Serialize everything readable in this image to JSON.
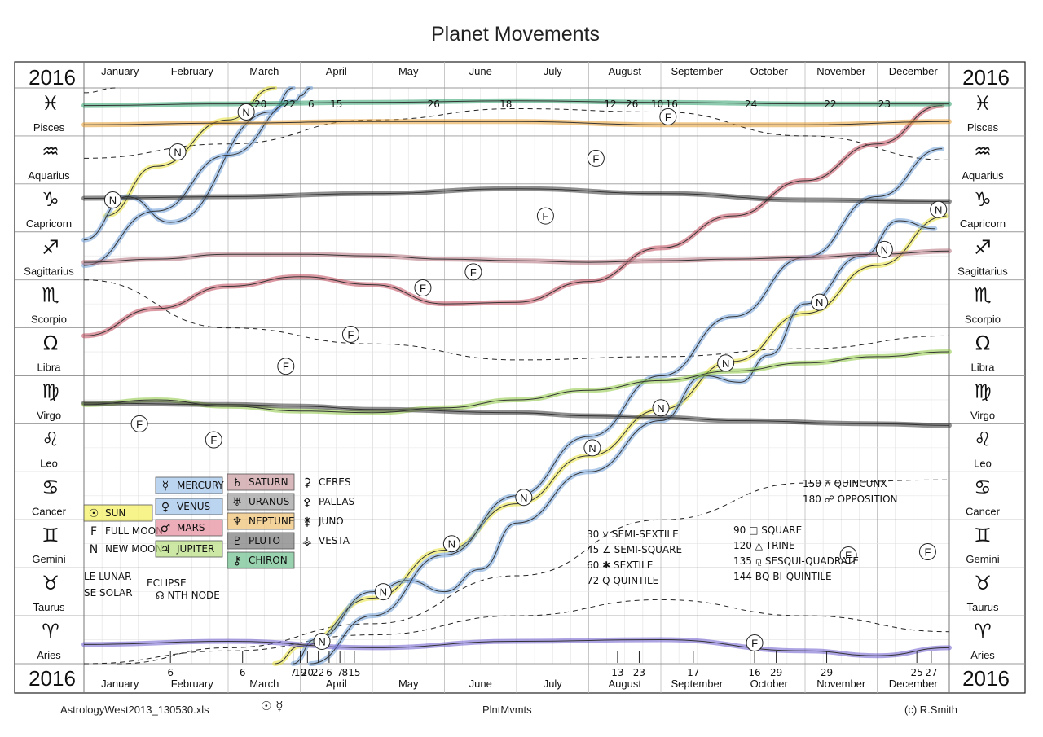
{
  "title": "Planet  Movements",
  "year": "2016",
  "footer": {
    "left": "AstrologyWest2013_130530.xls",
    "left_symbols": "☉ ☿",
    "center": "PlntMvmts",
    "right": "(c) R.Smith"
  },
  "chart_data": {
    "type": "line",
    "title": "Planet  Movements",
    "year": "2016",
    "months": [
      "January",
      "February",
      "March",
      "April",
      "May",
      "June",
      "July",
      "August",
      "September",
      "October",
      "November",
      "December"
    ],
    "signs": [
      {
        "name": "Pisces",
        "glyph": "♓"
      },
      {
        "name": "Aquarius",
        "glyph": "♒"
      },
      {
        "name": "Capricorn",
        "glyph": "♑"
      },
      {
        "name": "Sagittarius",
        "glyph": "♐"
      },
      {
        "name": "Scorpio",
        "glyph": "♏"
      },
      {
        "name": "Libra",
        "glyph": "Ω"
      },
      {
        "name": "Virgo",
        "glyph": "♍"
      },
      {
        "name": "Leo",
        "glyph": "♌"
      },
      {
        "name": "Cancer",
        "glyph": "♋"
      },
      {
        "name": "Gemini",
        "glyph": "♊"
      },
      {
        "name": "Taurus",
        "glyph": "♉"
      },
      {
        "name": "Aries",
        "glyph": "♈"
      }
    ],
    "xlim": [
      0,
      12
    ],
    "ylim": [
      0,
      360
    ],
    "series": [
      {
        "name": "Sun",
        "color": "#e8e23a",
        "points": [
          [
            0.3,
            280
          ],
          [
            1,
            311
          ],
          [
            2,
            340
          ],
          [
            3,
            11
          ],
          [
            4,
            41
          ],
          [
            5,
            71
          ],
          [
            6,
            100
          ],
          [
            7,
            130
          ],
          [
            8,
            159
          ],
          [
            9,
            189
          ],
          [
            10,
            219
          ],
          [
            11,
            249
          ],
          [
            11.96,
            280
          ]
        ]
      },
      {
        "name": "Mercury",
        "color": "#6f9fd8",
        "points": [
          [
            0,
            265
          ],
          [
            0.6,
            292
          ],
          [
            1.2,
            276
          ],
          [
            2.6,
            345
          ],
          [
            3.2,
            15
          ],
          [
            4,
            45
          ],
          [
            4.5,
            52
          ],
          [
            5,
            45
          ],
          [
            5.5,
            59
          ],
          [
            6,
            88
          ],
          [
            7,
            120
          ],
          [
            8,
            152
          ],
          [
            8.6,
            180
          ],
          [
            9.1,
            176
          ],
          [
            9.5,
            193
          ],
          [
            10,
            225
          ],
          [
            10.8,
            255
          ],
          [
            11.3,
            277
          ],
          [
            11.8,
            272
          ]
        ]
      },
      {
        "name": "Venus",
        "color": "#6f9fd8",
        "points": [
          [
            0,
            249
          ],
          [
            1,
            283
          ],
          [
            2,
            318
          ],
          [
            2.95,
            352
          ],
          [
            3,
            355
          ],
          [
            4,
            30
          ],
          [
            5,
            68
          ],
          [
            6,
            105
          ],
          [
            7,
            142
          ],
          [
            8,
            180
          ],
          [
            9,
            217
          ],
          [
            10,
            254
          ],
          [
            11,
            292
          ],
          [
            11.9,
            322
          ]
        ]
      },
      {
        "name": "Mars",
        "color": "#c0485a",
        "points": [
          [
            0,
            205
          ],
          [
            1,
            222
          ],
          [
            2,
            236
          ],
          [
            3,
            242
          ],
          [
            4,
            237
          ],
          [
            5,
            225
          ],
          [
            6,
            226
          ],
          [
            7,
            239
          ],
          [
            8,
            260
          ],
          [
            9,
            280
          ],
          [
            10,
            302
          ],
          [
            11,
            325
          ],
          [
            11.9,
            349
          ]
        ]
      },
      {
        "name": "Jupiter",
        "color": "#8cc63f",
        "points": [
          [
            0,
            162
          ],
          [
            1,
            165
          ],
          [
            2,
            161
          ],
          [
            3,
            158
          ],
          [
            4,
            157
          ],
          [
            5,
            160
          ],
          [
            6,
            165
          ],
          [
            7,
            171
          ],
          [
            8,
            177
          ],
          [
            9,
            183
          ],
          [
            10,
            188
          ],
          [
            11,
            192
          ],
          [
            12,
            195
          ]
        ]
      },
      {
        "name": "Saturn",
        "color": "#b0707a",
        "points": [
          [
            0,
            251
          ],
          [
            1,
            253
          ],
          [
            2,
            256
          ],
          [
            3,
            256
          ],
          [
            4,
            255
          ],
          [
            5,
            253
          ],
          [
            6,
            252
          ],
          [
            7,
            251
          ],
          [
            8,
            252
          ],
          [
            9,
            253
          ],
          [
            10,
            254
          ],
          [
            11,
            256
          ],
          [
            12,
            258
          ]
        ]
      },
      {
        "name": "Uranus",
        "color": "#333333",
        "points": [
          [
            0,
            291
          ],
          [
            2,
            292
          ],
          [
            4,
            294
          ],
          [
            6,
            297
          ],
          [
            8,
            294
          ],
          [
            10,
            290
          ],
          [
            12,
            289
          ]
        ]
      },
      {
        "name": "Neptune",
        "color": "#e39a2e",
        "points": [
          [
            0,
            337
          ],
          [
            2,
            338
          ],
          [
            4,
            339
          ],
          [
            6,
            339
          ],
          [
            8,
            337
          ],
          [
            10,
            337
          ],
          [
            12,
            339
          ]
        ]
      },
      {
        "name": "Pluto",
        "color": "#333333",
        "points": [
          [
            0,
            163
          ],
          [
            2,
            162
          ],
          [
            3,
            161
          ],
          [
            4,
            159
          ],
          [
            6,
            157
          ],
          [
            7,
            155
          ],
          [
            8,
            154
          ],
          [
            9,
            152
          ],
          [
            11,
            150
          ],
          [
            12,
            149
          ]
        ]
      },
      {
        "name": "Chiron",
        "color": "#2e9e6a",
        "points": [
          [
            0,
            349
          ],
          [
            2,
            350
          ],
          [
            4,
            351
          ],
          [
            6,
            352
          ],
          [
            8,
            351
          ],
          [
            10,
            350
          ],
          [
            12,
            350
          ]
        ]
      },
      {
        "name": "North Node",
        "color": "#6a5acd",
        "points": [
          [
            0,
            12
          ],
          [
            2,
            14
          ],
          [
            4,
            10
          ],
          [
            6,
            14
          ],
          [
            8,
            15
          ],
          [
            10,
            8
          ],
          [
            11,
            5
          ],
          [
            12,
            10
          ]
        ]
      }
    ],
    "dashed": [
      {
        "name": "Ceres",
        "color": "#222222",
        "points": [
          [
            0,
            0
          ],
          [
            2,
            8
          ],
          [
            4,
            18
          ],
          [
            6,
            30
          ],
          [
            8,
            40
          ],
          [
            10,
            30
          ],
          [
            12,
            20
          ]
        ]
      },
      {
        "name": "Pallas",
        "color": "#222222",
        "points": [
          [
            0,
            316
          ],
          [
            2,
            325
          ],
          [
            4,
            340
          ],
          [
            6,
            347
          ],
          [
            8,
            345
          ],
          [
            10,
            330
          ],
          [
            12,
            315
          ]
        ]
      },
      {
        "name": "Juno",
        "color": "#222222",
        "points": [
          [
            0,
            240
          ],
          [
            2,
            210
          ],
          [
            4,
            200
          ],
          [
            6,
            190
          ],
          [
            8,
            192
          ],
          [
            10,
            197
          ],
          [
            12,
            205
          ]
        ]
      },
      {
        "name": "Vesta",
        "color": "#222222",
        "points": [
          [
            0,
            357
          ],
          [
            2,
            10
          ],
          [
            4,
            25
          ],
          [
            6,
            55
          ],
          [
            8,
            90
          ],
          [
            10,
            113
          ],
          [
            12,
            115
          ]
        ]
      }
    ],
    "legend": [
      {
        "label": "SUN",
        "glyph": "☉",
        "color": "#f4ef5a"
      },
      {
        "label": "FULL MOON",
        "glyph": "F",
        "color": ""
      },
      {
        "label": "NEW MOON",
        "glyph": "N",
        "color": ""
      },
      {
        "label": "MERCURY",
        "glyph": "☿",
        "color": "#9ec2ea"
      },
      {
        "label": "VENUS",
        "glyph": "♀",
        "color": "#9ec2ea"
      },
      {
        "label": "MARS",
        "glyph": "♂",
        "color": "#e48a9a"
      },
      {
        "label": "JUPITER",
        "glyph": "♃",
        "color": "#b6de7e"
      },
      {
        "label": "SATURN",
        "glyph": "♄",
        "color": "#c99a9f"
      },
      {
        "label": "URANUS",
        "glyph": "♅",
        "color": "#9c9c9c"
      },
      {
        "label": "NEPTUNE",
        "glyph": "♆",
        "color": "#f0c070"
      },
      {
        "label": "PLUTO",
        "glyph": "♇",
        "color": "#777777"
      },
      {
        "label": "CHIRON",
        "glyph": "⚷",
        "color": "#6cbf8d"
      },
      {
        "label": "CERES",
        "glyph": "⚳",
        "color": ""
      },
      {
        "label": "PALLAS",
        "glyph": "⚴",
        "color": ""
      },
      {
        "label": "JUNO",
        "glyph": "⚵",
        "color": ""
      },
      {
        "label": "VESTA",
        "glyph": "⚶",
        "color": ""
      }
    ],
    "eclipse_notes": [
      "LE  LUNAR",
      "SE  SOLAR",
      "ECLIPSE",
      "☊ NTH NODE"
    ],
    "aspects_left": [
      "30 ⚺ SEMI-SEXTILE",
      "45 ∠ SEMI-SQUARE",
      "60 ✱ SEXTILE",
      "72 Q QUINTILE"
    ],
    "aspects_right": [
      "90 □ SQUARE",
      "120 △ TRINE",
      "135 ⚼ SESQUI-QUADRATE",
      "144 BQ BI-QUINTILE"
    ],
    "aspects_top": [
      "150 ⚻ QUINCUNX",
      "180 ☍ OPPOSITION"
    ],
    "full_moons": [
      [
        0.77,
        150
      ],
      [
        1.8,
        140
      ],
      [
        2.8,
        186
      ],
      [
        3.7,
        206
      ],
      [
        4.7,
        235
      ],
      [
        5.4,
        245
      ],
      [
        6.4,
        280
      ],
      [
        7.1,
        316
      ],
      [
        8.1,
        342
      ],
      [
        9.3,
        13
      ],
      [
        10.6,
        68
      ],
      [
        11.7,
        70
      ]
    ],
    "new_moons": [
      [
        0.4,
        290
      ],
      [
        1.3,
        320
      ],
      [
        2.25,
        345
      ],
      [
        3.3,
        14
      ],
      [
        4.15,
        45
      ],
      [
        5.1,
        75
      ],
      [
        6.1,
        104
      ],
      [
        7.05,
        135
      ],
      [
        8.0,
        160
      ],
      [
        8.9,
        188
      ],
      [
        10.2,
        226
      ],
      [
        11.1,
        259
      ],
      [
        11.85,
        284
      ]
    ],
    "bottom_ticks": [
      [
        "6",
        1.2
      ],
      [
        "6",
        2.2
      ],
      [
        "7",
        2.9
      ],
      [
        "19",
        3.0
      ],
      [
        "20",
        3.1
      ],
      [
        "22",
        3.25
      ],
      [
        "6",
        3.4
      ],
      [
        "7",
        3.55
      ],
      [
        "8",
        3.62
      ],
      [
        "15",
        3.75
      ],
      [
        "13",
        7.4
      ],
      [
        "23",
        7.7
      ],
      [
        "17",
        8.45
      ],
      [
        "16",
        9.3
      ],
      [
        "29",
        9.6
      ],
      [
        "29",
        10.3
      ],
      [
        "25",
        11.55
      ],
      [
        "27",
        11.75
      ]
    ],
    "top_ticks": [
      [
        "20",
        2.45
      ],
      [
        "22",
        2.85
      ],
      [
        "6",
        3.15
      ],
      [
        "15",
        3.5
      ],
      [
        "26",
        4.85
      ],
      [
        "18",
        5.85
      ],
      [
        "12",
        7.3
      ],
      [
        "26",
        7.6
      ],
      [
        "10",
        7.95
      ],
      [
        "16",
        8.15
      ],
      [
        "24",
        9.25
      ],
      [
        "22",
        10.35
      ],
      [
        "23",
        11.1
      ]
    ]
  }
}
